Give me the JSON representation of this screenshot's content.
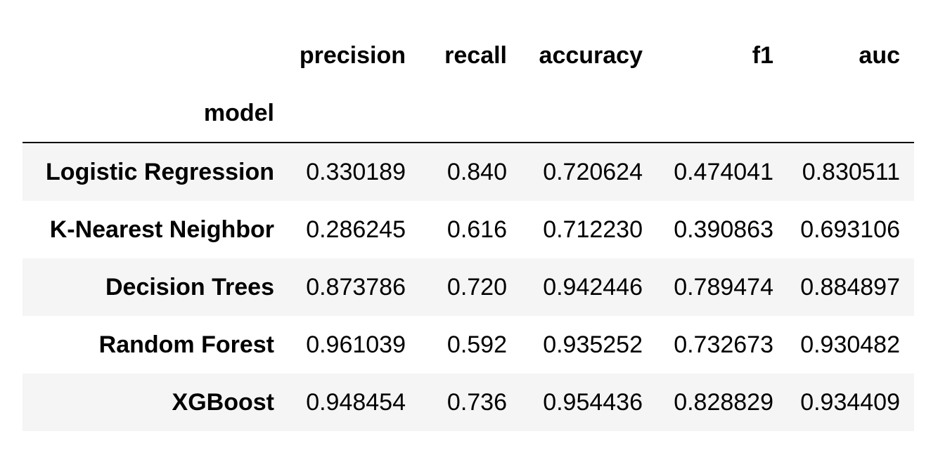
{
  "table": {
    "columns": [
      "precision",
      "recall",
      "accuracy",
      "f1",
      "auc"
    ],
    "index_name": "model",
    "rows": [
      {
        "model": "Logistic Regression",
        "values": [
          "0.330189",
          "0.840",
          "0.720624",
          "0.474041",
          "0.830511"
        ]
      },
      {
        "model": "K-Nearest Neighbor",
        "values": [
          "0.286245",
          "0.616",
          "0.712230",
          "0.390863",
          "0.693106"
        ]
      },
      {
        "model": "Decision Trees",
        "values": [
          "0.873786",
          "0.720",
          "0.942446",
          "0.789474",
          "0.884897"
        ]
      },
      {
        "model": "Random Forest",
        "values": [
          "0.961039",
          "0.592",
          "0.935252",
          "0.732673",
          "0.930482"
        ]
      },
      {
        "model": "XGBoost",
        "values": [
          "0.948454",
          "0.736",
          "0.954436",
          "0.828829",
          "0.934409"
        ]
      }
    ]
  }
}
